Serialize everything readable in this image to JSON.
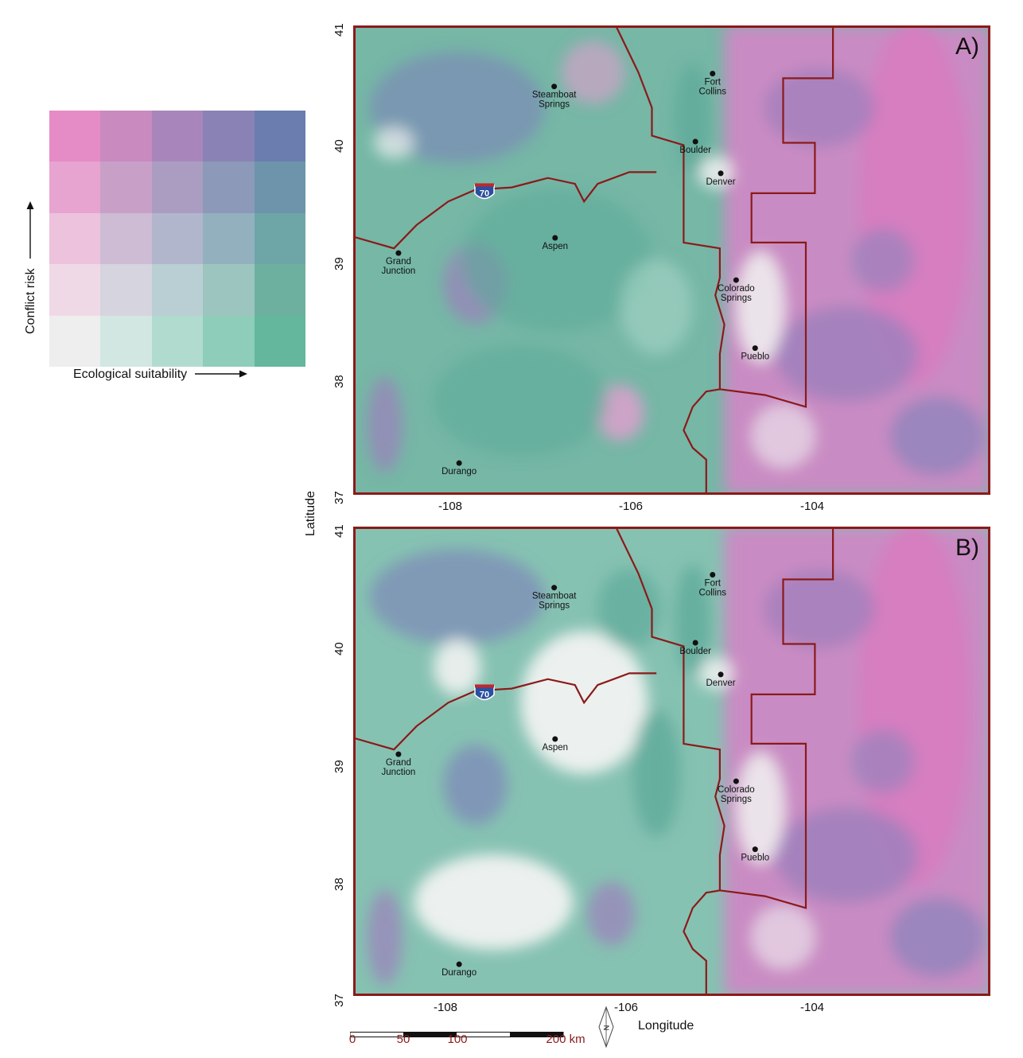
{
  "legend": {
    "y_label": "Conflict risk",
    "x_label": "Ecological suitability",
    "colors": [
      [
        "#e58bc6",
        "#c98ac0",
        "#a886bb",
        "#8a82b4",
        "#6b7dae"
      ],
      [
        "#e7a4d0",
        "#c8a0c7",
        "#aa9dc1",
        "#8c99b8",
        "#6d94ab"
      ],
      [
        "#ecc2dc",
        "#cdbcd4",
        "#b1b6cc",
        "#93b0be",
        "#6ea6a8"
      ],
      [
        "#f0d9e6",
        "#d5d4df",
        "#b9cfd3",
        "#9cc5bf",
        "#6eb09f"
      ],
      [
        "#eeeeee",
        "#d2e7e1",
        "#b2dbcf",
        "#8ecdb9",
        "#64b79c"
      ]
    ]
  },
  "panels": [
    {
      "label": "A)",
      "variant": "A"
    },
    {
      "label": "B)",
      "variant": "B"
    }
  ],
  "cities": [
    {
      "name": [
        "Steamboat",
        "Springs"
      ],
      "lon": -106.83,
      "lat": 40.48
    },
    {
      "name": [
        "Fort",
        "Collins"
      ],
      "lon": -105.08,
      "lat": 40.59
    },
    {
      "name": [
        "Boulder"
      ],
      "lon": -105.27,
      "lat": 40.01
    },
    {
      "name": [
        "Denver"
      ],
      "lon": -104.99,
      "lat": 39.74
    },
    {
      "name": [
        "Aspen"
      ],
      "lon": -106.82,
      "lat": 39.19
    },
    {
      "name": [
        "Grand",
        "Junction"
      ],
      "lon": -108.55,
      "lat": 39.06
    },
    {
      "name": [
        "Colorado",
        "Springs"
      ],
      "lon": -104.82,
      "lat": 38.83
    },
    {
      "name": [
        "Pueblo"
      ],
      "lon": -104.61,
      "lat": 38.25
    },
    {
      "name": [
        "Durango"
      ],
      "lon": -107.88,
      "lat": 37.27
    }
  ],
  "highway_shield": "70",
  "axes": {
    "x_ticks": [
      "-108",
      "-106",
      "-104"
    ],
    "y_ticks": [
      "37",
      "38",
      "39",
      "40",
      "41"
    ],
    "x_title": "Longitude",
    "y_title": "Latitude"
  },
  "scale_bar": {
    "labels": [
      "0",
      "50",
      "100",
      "200 km"
    ]
  },
  "north_arrow": "N",
  "colors": {
    "boundary": "#8b1a1a",
    "frame": "#8b1a1a",
    "scale_text": "#8b1a1a"
  }
}
